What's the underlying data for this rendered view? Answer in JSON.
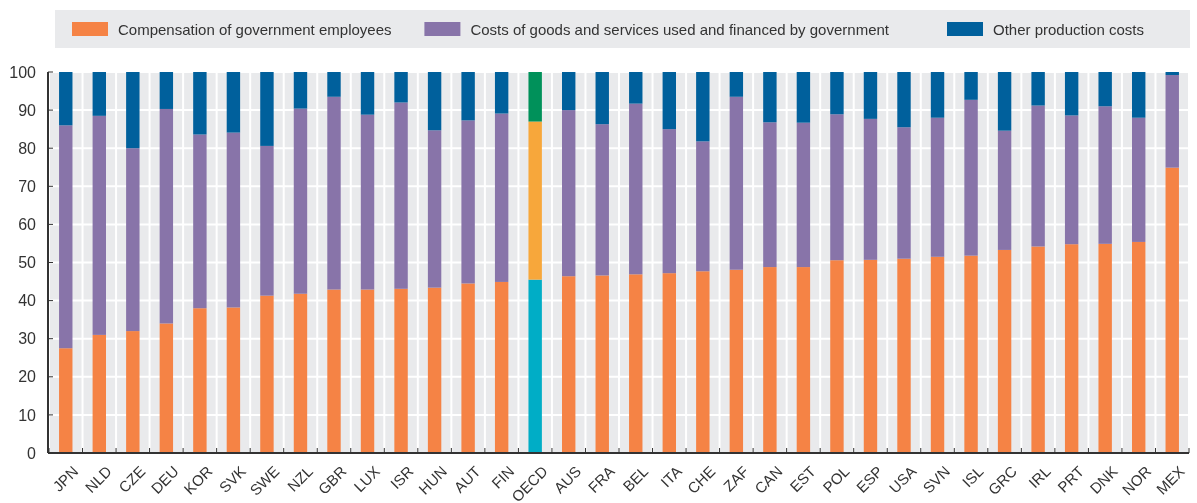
{
  "chart_data": {
    "type": "bar",
    "stacked": true,
    "legend": "top",
    "grid": true,
    "categories": [
      "JPN",
      "NLD",
      "CZE",
      "DEU",
      "KOR",
      "SVK",
      "SWE",
      "NZL",
      "GBR",
      "LUX",
      "ISR",
      "HUN",
      "AUT",
      "FIN",
      "OECD",
      "AUS",
      "FRA",
      "BEL",
      "ITA",
      "CHE",
      "ZAF",
      "CAN",
      "EST",
      "POL",
      "ESP",
      "USA",
      "SVN",
      "ISL",
      "GRC",
      "IRL",
      "PRT",
      "DNK",
      "NOR",
      "MEX"
    ],
    "ylim": [
      0,
      100
    ],
    "yticks": [
      0,
      10,
      20,
      30,
      40,
      50,
      60,
      70,
      80,
      90,
      100
    ],
    "series": [
      {
        "name": "Compensation of government employees",
        "color": "#f58345",
        "colors": [
          "#f58345",
          "#f58345",
          "#f58345",
          "#f58345",
          "#f58345",
          "#f58345",
          "#f58345",
          "#f58345",
          "#f58345",
          "#f58345",
          "#f58345",
          "#f58345",
          "#f58345",
          "#f58345",
          "#00adc6",
          "#f58345",
          "#f58345",
          "#f58345",
          "#f58345",
          "#f58345",
          "#f58345",
          "#f58345",
          "#f58345",
          "#f58345",
          "#f58345",
          "#f58345",
          "#f58345",
          "#f58345",
          "#f58345",
          "#f58345",
          "#f58345",
          "#f58345",
          "#f58345",
          "#f58345"
        ],
        "values": [
          27.5,
          31,
          32,
          34,
          38,
          38.2,
          41.3,
          41.8,
          42.9,
          42.9,
          43.1,
          43.4,
          44.5,
          44.9,
          45.5,
          46.4,
          46.6,
          46.9,
          47.2,
          47.7,
          48.1,
          48.8,
          48.8,
          50.6,
          50.7,
          51,
          51.5,
          51.8,
          53.3,
          54.2,
          54.8,
          54.9,
          55.4,
          74.9
        ]
      },
      {
        "name": "Costs of goods and services used and financed by government",
        "color": "#8874a9",
        "colors": [
          "#8874a9",
          "#8874a9",
          "#8874a9",
          "#8874a9",
          "#8874a9",
          "#8874a9",
          "#8874a9",
          "#8874a9",
          "#8874a9",
          "#8874a9",
          "#8874a9",
          "#8874a9",
          "#8874a9",
          "#8874a9",
          "#f7a73b",
          "#8874a9",
          "#8874a9",
          "#8874a9",
          "#8874a9",
          "#8874a9",
          "#8874a9",
          "#8874a9",
          "#8874a9",
          "#8874a9",
          "#8874a9",
          "#8874a9",
          "#8874a9",
          "#8874a9",
          "#8874a9",
          "#8874a9",
          "#8874a9",
          "#8874a9",
          "#8874a9",
          "#8874a9"
        ],
        "values": [
          58.5,
          57.5,
          48,
          56.3,
          45.6,
          45.9,
          39.3,
          48.6,
          50.6,
          45.9,
          48.9,
          41.3,
          42.8,
          44.2,
          41.5,
          43.6,
          39.7,
          44.8,
          37.8,
          34.1,
          45.4,
          38,
          37.9,
          38.3,
          37,
          34.5,
          36.5,
          40.9,
          31.3,
          37,
          33.8,
          36.1,
          32.6,
          24.3
        ]
      },
      {
        "name": "Other production costs",
        "color": "#00609c",
        "colors": [
          "#00609c",
          "#00609c",
          "#00609c",
          "#00609c",
          "#00609c",
          "#00609c",
          "#00609c",
          "#00609c",
          "#00609c",
          "#00609c",
          "#00609c",
          "#00609c",
          "#00609c",
          "#00609c",
          "#00915a",
          "#00609c",
          "#00609c",
          "#00609c",
          "#00609c",
          "#00609c",
          "#00609c",
          "#00609c",
          "#00609c",
          "#00609c",
          "#00609c",
          "#00609c",
          "#00609c",
          "#00609c",
          "#00609c",
          "#00609c",
          "#00609c",
          "#00609c",
          "#00609c",
          "#00609c"
        ],
        "values": [
          14,
          11.5,
          20,
          9.7,
          16.4,
          15.9,
          19.4,
          9.6,
          6.5,
          11.2,
          8,
          15.3,
          12.7,
          10.9,
          13,
          10,
          13.7,
          8.3,
          15,
          18.2,
          6.5,
          13.2,
          13.3,
          11.1,
          12.3,
          14.5,
          12,
          7.3,
          15.4,
          8.8,
          11.4,
          9,
          12,
          0.8
        ]
      }
    ]
  }
}
